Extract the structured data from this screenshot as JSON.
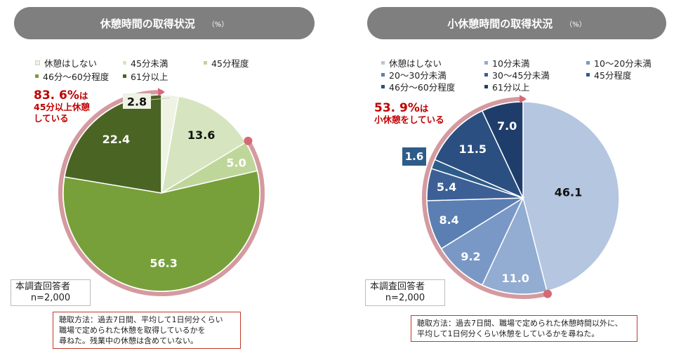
{
  "left": {
    "title": "休憩時間の取得状況",
    "unit": "（%）",
    "legend": [
      {
        "label": "休憩はしない",
        "color": "#eef3e4"
      },
      {
        "label": "45分未満",
        "color": "#d6e5c0"
      },
      {
        "label": "45分程度",
        "color": "#bfd69a"
      },
      {
        "label": "46分～60分程度",
        "color": "#77a03a"
      },
      {
        "label": "61分以上",
        "color": "#4a6424"
      }
    ],
    "callout": {
      "value": "83. 6%",
      "suffix": "は",
      "line2": "45分以上休憩",
      "line3": "している"
    },
    "respondents": {
      "line1": "本調査回答者",
      "line2": "n=2,000"
    },
    "method": {
      "line1": "聴取方法：過去7日間、平均して1日何分くらい",
      "line2": "職場で定められた休憩を取得しているかを",
      "line3": "尋ねた。残業中の休憩は含めていない。"
    }
  },
  "right": {
    "title": "小休憩時間の取得状況",
    "unit": "（%）",
    "legend": [
      {
        "label": "休憩はしない",
        "color": "#b4c6e0"
      },
      {
        "label": "10分未満",
        "color": "#93acd2"
      },
      {
        "label": "10～20分未満",
        "color": "#7a98c6"
      },
      {
        "label": "20～30分未満",
        "color": "#5b7fb3"
      },
      {
        "label": "30～45分未満",
        "color": "#3c5f96"
      },
      {
        "label": "45分程度",
        "color": "#2e5c8a"
      },
      {
        "label": "46分～60分程度",
        "color": "#2b4f80"
      },
      {
        "label": "61分以上",
        "color": "#1f3d6b"
      }
    ],
    "callout": {
      "value": "53. 9%",
      "suffix": "は",
      "line2": "小休憩をしている"
    },
    "respondents": {
      "line1": "本調査回答者",
      "line2": "n=2,000"
    },
    "method": {
      "line1": "聴取方法：過去7日間、職場で定められた休憩時間以外に、",
      "line2": "平均して1日何分くらい休憩をしているかを尋ねた。"
    }
  },
  "chart_data": [
    {
      "type": "pie",
      "title": "休憩時間の取得状況",
      "categories": [
        "休憩はしない",
        "45分未満",
        "45分程度",
        "46分～60分程度",
        "61分以上"
      ],
      "values": [
        2.8,
        13.6,
        5.0,
        56.3,
        22.4
      ],
      "value_labels": [
        "2.8",
        "13.6",
        "5.0",
        "56.3",
        "22.4"
      ]
    },
    {
      "type": "pie",
      "title": "小休憩時間の取得状況",
      "categories": [
        "休憩はしない",
        "10分未満",
        "10～20分未満",
        "20～30分未満",
        "30～45分未満",
        "45分程度",
        "46分～60分程度",
        "61分以上"
      ],
      "values": [
        46.1,
        11.0,
        9.2,
        8.4,
        5.4,
        1.6,
        11.5,
        7.0
      ],
      "value_labels": [
        "46.1",
        "11.0",
        "9.2",
        "8.4",
        "5.4",
        "1.6",
        "11.5",
        "7.0"
      ]
    }
  ]
}
